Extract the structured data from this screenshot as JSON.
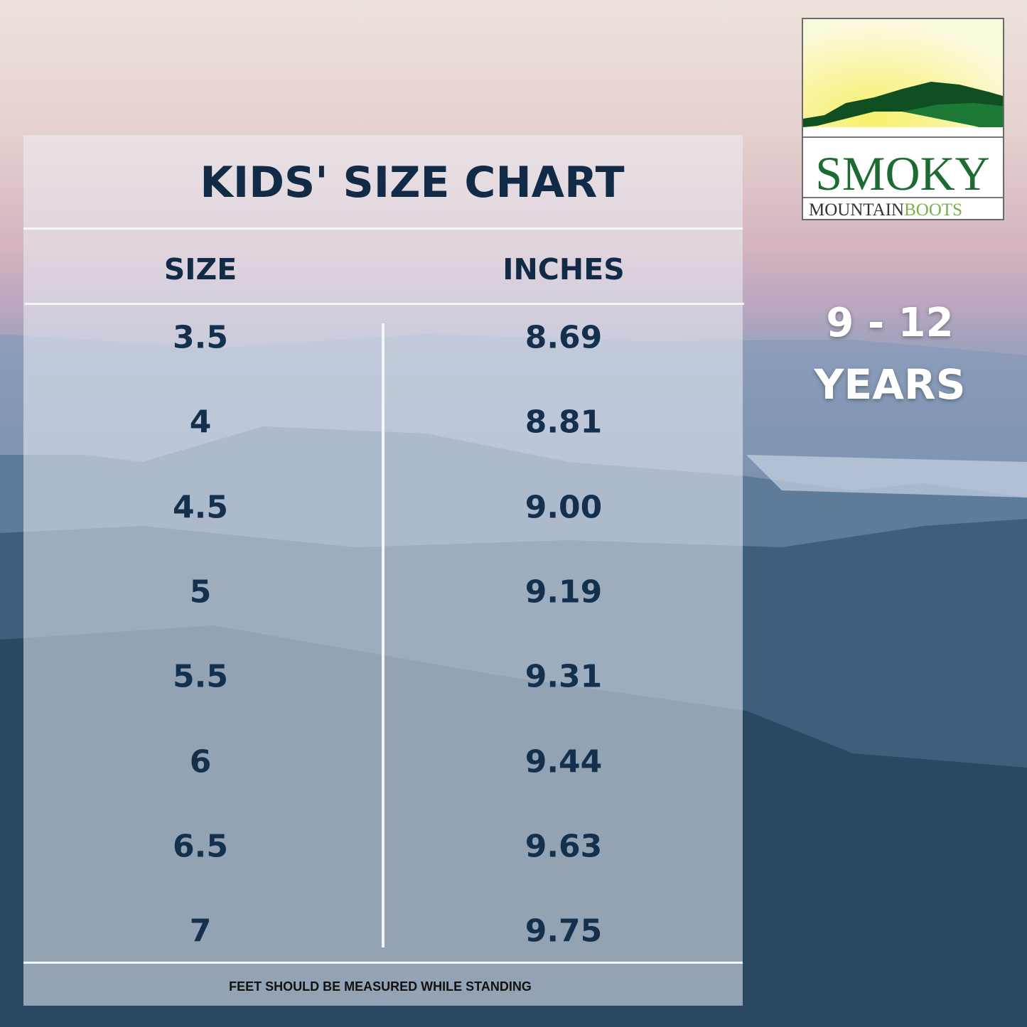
{
  "title": "KIDS' SIZE CHART",
  "columns": [
    "SIZE",
    "INCHES"
  ],
  "rows": [
    {
      "size": "3.5",
      "inches": "8.69"
    },
    {
      "size": "4",
      "inches": "8.81"
    },
    {
      "size": "4.5",
      "inches": "9.00"
    },
    {
      "size": "5",
      "inches": "9.19"
    },
    {
      "size": "5.5",
      "inches": "9.31"
    },
    {
      "size": "6",
      "inches": "9.44"
    },
    {
      "size": "6.5",
      "inches": "9.63"
    },
    {
      "size": "7",
      "inches": "9.75"
    }
  ],
  "footnote": "FEET SHOULD BE MEASURED WHILE STANDING",
  "age_range": {
    "line1": "9 - 12",
    "line2": "YEARS"
  },
  "logo": {
    "word1": "SMOKY",
    "word2": "MOUNTAIN",
    "word3": "BOOTS"
  },
  "colors": {
    "text": "#112a45",
    "logo_green": "#1d6b32",
    "logo_dark_green": "#0f4f22"
  }
}
